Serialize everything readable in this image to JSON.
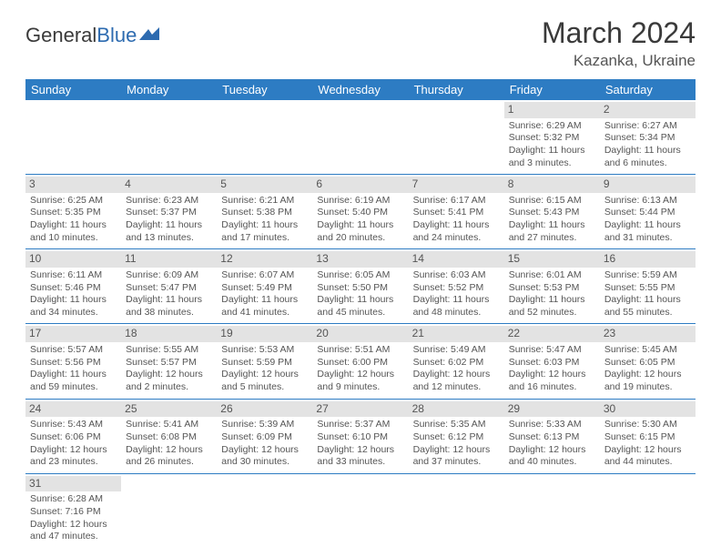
{
  "logo": {
    "text1": "General",
    "text2": "Blue"
  },
  "title": "March 2024",
  "location": "Kazanka, Ukraine",
  "colors": {
    "header_bg": "#2d7cc3",
    "header_text": "#ffffff",
    "daynum_bg": "#e3e3e3",
    "border": "#2d7cc3",
    "logo_blue": "#2d6bb0"
  },
  "weekdays": [
    "Sunday",
    "Monday",
    "Tuesday",
    "Wednesday",
    "Thursday",
    "Friday",
    "Saturday"
  ],
  "weeks": [
    [
      null,
      null,
      null,
      null,
      null,
      {
        "n": "1",
        "sr": "Sunrise: 6:29 AM",
        "ss": "Sunset: 5:32 PM",
        "dl": "Daylight: 11 hours and 3 minutes."
      },
      {
        "n": "2",
        "sr": "Sunrise: 6:27 AM",
        "ss": "Sunset: 5:34 PM",
        "dl": "Daylight: 11 hours and 6 minutes."
      }
    ],
    [
      {
        "n": "3",
        "sr": "Sunrise: 6:25 AM",
        "ss": "Sunset: 5:35 PM",
        "dl": "Daylight: 11 hours and 10 minutes."
      },
      {
        "n": "4",
        "sr": "Sunrise: 6:23 AM",
        "ss": "Sunset: 5:37 PM",
        "dl": "Daylight: 11 hours and 13 minutes."
      },
      {
        "n": "5",
        "sr": "Sunrise: 6:21 AM",
        "ss": "Sunset: 5:38 PM",
        "dl": "Daylight: 11 hours and 17 minutes."
      },
      {
        "n": "6",
        "sr": "Sunrise: 6:19 AM",
        "ss": "Sunset: 5:40 PM",
        "dl": "Daylight: 11 hours and 20 minutes."
      },
      {
        "n": "7",
        "sr": "Sunrise: 6:17 AM",
        "ss": "Sunset: 5:41 PM",
        "dl": "Daylight: 11 hours and 24 minutes."
      },
      {
        "n": "8",
        "sr": "Sunrise: 6:15 AM",
        "ss": "Sunset: 5:43 PM",
        "dl": "Daylight: 11 hours and 27 minutes."
      },
      {
        "n": "9",
        "sr": "Sunrise: 6:13 AM",
        "ss": "Sunset: 5:44 PM",
        "dl": "Daylight: 11 hours and 31 minutes."
      }
    ],
    [
      {
        "n": "10",
        "sr": "Sunrise: 6:11 AM",
        "ss": "Sunset: 5:46 PM",
        "dl": "Daylight: 11 hours and 34 minutes."
      },
      {
        "n": "11",
        "sr": "Sunrise: 6:09 AM",
        "ss": "Sunset: 5:47 PM",
        "dl": "Daylight: 11 hours and 38 minutes."
      },
      {
        "n": "12",
        "sr": "Sunrise: 6:07 AM",
        "ss": "Sunset: 5:49 PM",
        "dl": "Daylight: 11 hours and 41 minutes."
      },
      {
        "n": "13",
        "sr": "Sunrise: 6:05 AM",
        "ss": "Sunset: 5:50 PM",
        "dl": "Daylight: 11 hours and 45 minutes."
      },
      {
        "n": "14",
        "sr": "Sunrise: 6:03 AM",
        "ss": "Sunset: 5:52 PM",
        "dl": "Daylight: 11 hours and 48 minutes."
      },
      {
        "n": "15",
        "sr": "Sunrise: 6:01 AM",
        "ss": "Sunset: 5:53 PM",
        "dl": "Daylight: 11 hours and 52 minutes."
      },
      {
        "n": "16",
        "sr": "Sunrise: 5:59 AM",
        "ss": "Sunset: 5:55 PM",
        "dl": "Daylight: 11 hours and 55 minutes."
      }
    ],
    [
      {
        "n": "17",
        "sr": "Sunrise: 5:57 AM",
        "ss": "Sunset: 5:56 PM",
        "dl": "Daylight: 11 hours and 59 minutes."
      },
      {
        "n": "18",
        "sr": "Sunrise: 5:55 AM",
        "ss": "Sunset: 5:57 PM",
        "dl": "Daylight: 12 hours and 2 minutes."
      },
      {
        "n": "19",
        "sr": "Sunrise: 5:53 AM",
        "ss": "Sunset: 5:59 PM",
        "dl": "Daylight: 12 hours and 5 minutes."
      },
      {
        "n": "20",
        "sr": "Sunrise: 5:51 AM",
        "ss": "Sunset: 6:00 PM",
        "dl": "Daylight: 12 hours and 9 minutes."
      },
      {
        "n": "21",
        "sr": "Sunrise: 5:49 AM",
        "ss": "Sunset: 6:02 PM",
        "dl": "Daylight: 12 hours and 12 minutes."
      },
      {
        "n": "22",
        "sr": "Sunrise: 5:47 AM",
        "ss": "Sunset: 6:03 PM",
        "dl": "Daylight: 12 hours and 16 minutes."
      },
      {
        "n": "23",
        "sr": "Sunrise: 5:45 AM",
        "ss": "Sunset: 6:05 PM",
        "dl": "Daylight: 12 hours and 19 minutes."
      }
    ],
    [
      {
        "n": "24",
        "sr": "Sunrise: 5:43 AM",
        "ss": "Sunset: 6:06 PM",
        "dl": "Daylight: 12 hours and 23 minutes."
      },
      {
        "n": "25",
        "sr": "Sunrise: 5:41 AM",
        "ss": "Sunset: 6:08 PM",
        "dl": "Daylight: 12 hours and 26 minutes."
      },
      {
        "n": "26",
        "sr": "Sunrise: 5:39 AM",
        "ss": "Sunset: 6:09 PM",
        "dl": "Daylight: 12 hours and 30 minutes."
      },
      {
        "n": "27",
        "sr": "Sunrise: 5:37 AM",
        "ss": "Sunset: 6:10 PM",
        "dl": "Daylight: 12 hours and 33 minutes."
      },
      {
        "n": "28",
        "sr": "Sunrise: 5:35 AM",
        "ss": "Sunset: 6:12 PM",
        "dl": "Daylight: 12 hours and 37 minutes."
      },
      {
        "n": "29",
        "sr": "Sunrise: 5:33 AM",
        "ss": "Sunset: 6:13 PM",
        "dl": "Daylight: 12 hours and 40 minutes."
      },
      {
        "n": "30",
        "sr": "Sunrise: 5:30 AM",
        "ss": "Sunset: 6:15 PM",
        "dl": "Daylight: 12 hours and 44 minutes."
      }
    ],
    [
      {
        "n": "31",
        "sr": "Sunrise: 6:28 AM",
        "ss": "Sunset: 7:16 PM",
        "dl": "Daylight: 12 hours and 47 minutes."
      },
      null,
      null,
      null,
      null,
      null,
      null
    ]
  ]
}
